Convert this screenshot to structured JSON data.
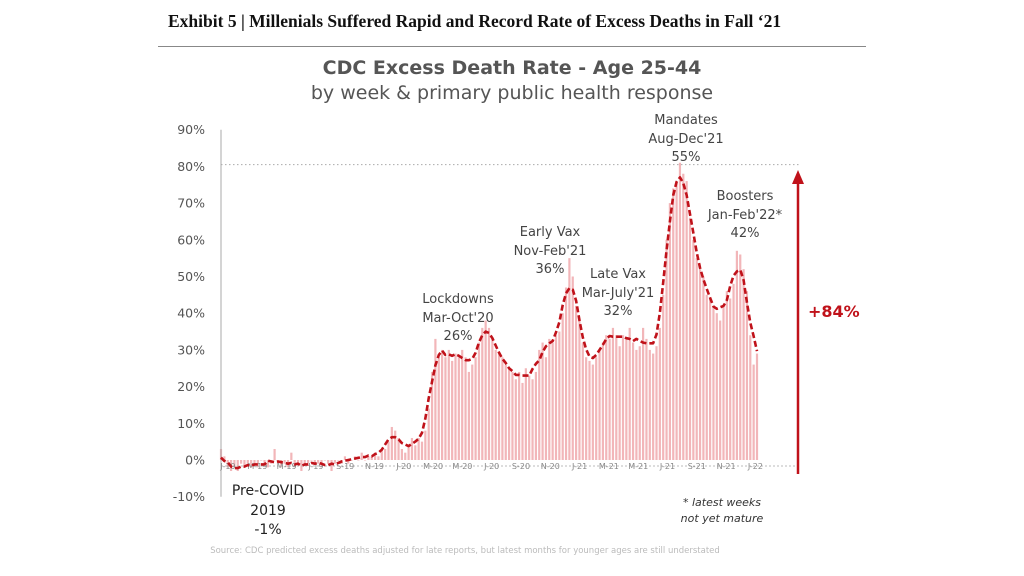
{
  "header": {
    "exhibit_title": "Exhibit 5 | Millenials Suffered Rapid and Record Rate of Excess Deaths in Fall ‘21"
  },
  "chart_data": {
    "type": "bar",
    "title": "CDC Excess Death Rate - Age 25-44",
    "subtitle": "by week & primary public health response",
    "xlabel": "",
    "ylabel": "",
    "ylim": [
      -10,
      90
    ],
    "y_ticks": [
      "-10%",
      "0%",
      "10%",
      "20%",
      "30%",
      "40%",
      "50%",
      "60%",
      "70%",
      "80%",
      "90%"
    ],
    "y_tick_values": [
      -10,
      0,
      10,
      20,
      30,
      40,
      50,
      60,
      70,
      80,
      90
    ],
    "x_tick_labels": [
      "J-19",
      "M-19",
      "M-19",
      "J-19",
      "S-19",
      "N-19",
      "J-20",
      "M-20",
      "M-20",
      "J-20",
      "S-20",
      "N-20",
      "J-21",
      "M-21",
      "M-21",
      "J-21",
      "S-21",
      "N-21",
      "J-22"
    ],
    "grid": false,
    "bar_color": "#f2b6b9",
    "line_color": "#c0121a",
    "line_style": "dashed moving average",
    "weekly_values": [
      3,
      1,
      -2,
      -3,
      -2,
      -3,
      -1,
      -2,
      -1,
      -2,
      -1,
      -2,
      0,
      -1,
      -2,
      -1,
      3,
      -1,
      -2,
      -1,
      -2,
      2,
      -2,
      -1,
      -3,
      -1,
      -1,
      0,
      -1,
      -1,
      -2,
      0,
      -1,
      -3,
      -1,
      0,
      -1,
      1,
      -1,
      0,
      1,
      0,
      2,
      0,
      1,
      1,
      2,
      1,
      3,
      3,
      5,
      9,
      8,
      6,
      3,
      2,
      4,
      6,
      4,
      6,
      5,
      8,
      14,
      24,
      33,
      28,
      30,
      28,
      30,
      27,
      29,
      28,
      30,
      28,
      24,
      26,
      28,
      32,
      36,
      38,
      36,
      33,
      30,
      29,
      28,
      26,
      25,
      24,
      22,
      24,
      21,
      25,
      23,
      22,
      24,
      30,
      32,
      28,
      33,
      32,
      34,
      35,
      40,
      47,
      55,
      50,
      42,
      38,
      32,
      28,
      27,
      26,
      28,
      30,
      32,
      34,
      33,
      36,
      34,
      31,
      34,
      33,
      36,
      32,
      30,
      31,
      36,
      33,
      30,
      29,
      31,
      36,
      45,
      60,
      70,
      74,
      76,
      81,
      78,
      76,
      66,
      60,
      55,
      52,
      50,
      45,
      44,
      42,
      40,
      38,
      42,
      46,
      44,
      48,
      57,
      56,
      52,
      46,
      34,
      26,
      29
    ],
    "reference_line_value": 80.5,
    "change_label": "+84%",
    "annotations": [
      {
        "lines": [
          "Lockdowns",
          "Mar-Oct'20",
          "26%"
        ]
      },
      {
        "lines": [
          "Early Vax",
          "Nov-Feb'21",
          "36%"
        ]
      },
      {
        "lines": [
          "Late Vax",
          "Mar-July'21",
          "32%"
        ]
      },
      {
        "lines": [
          "Mandates",
          "Aug-Dec'21",
          "55%"
        ]
      },
      {
        "lines": [
          "Boosters",
          "Jan-Feb'22*",
          "42%"
        ]
      },
      {
        "lines": [
          "Pre-COVID",
          "2019",
          "-1%"
        ]
      }
    ],
    "note": [
      "* latest weeks",
      "not yet mature"
    ],
    "source": "Source: CDC predicted excess deaths adjusted for late reports, but latest months for younger ages are still understated"
  }
}
